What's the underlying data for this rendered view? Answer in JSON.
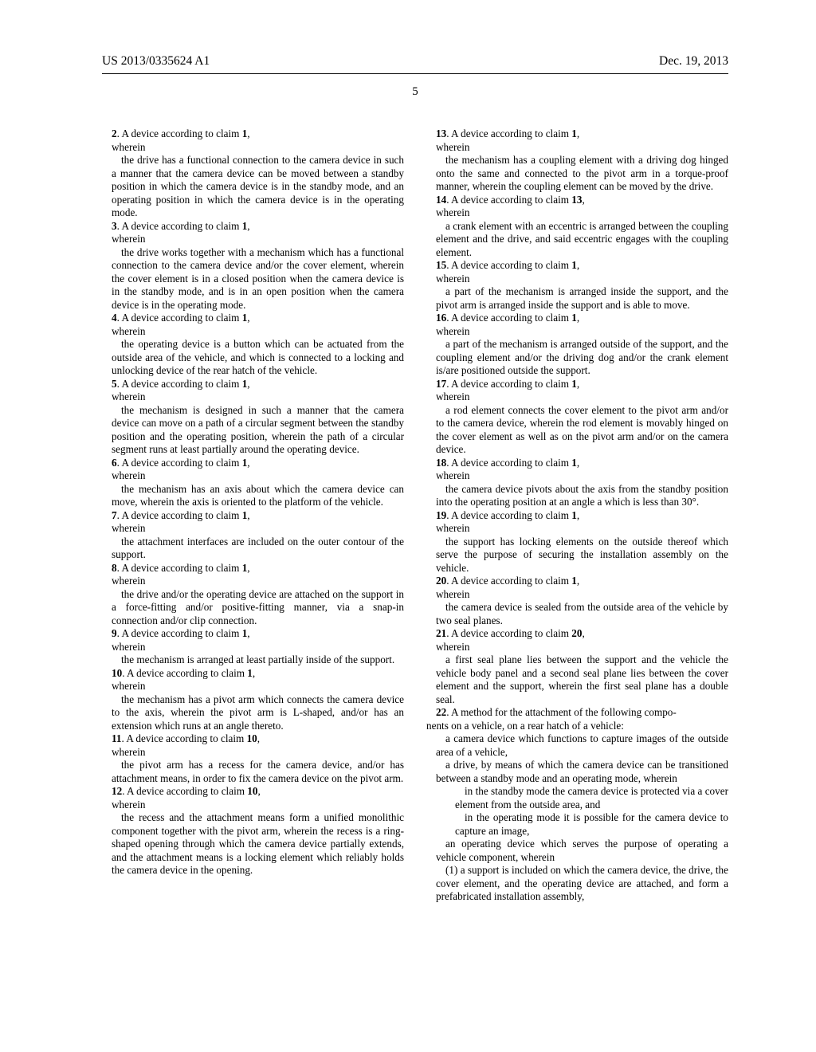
{
  "header": {
    "left": "US 2013/0335624 A1",
    "right": "Dec. 19, 2013",
    "pageNumber": "5"
  },
  "leftColumn": {
    "c2_lead": "2. A device according to claim 1,",
    "c2_wherein": "wherein",
    "c2_body": "the drive has a functional connection to the camera device in such a manner that the camera device can be moved between a standby position in which the camera device is in the standby mode, and an operating position in which the camera device is in the operating mode.",
    "c3_lead": "3. A device according to claim 1,",
    "c3_wherein": "wherein",
    "c3_body": "the drive works together with a mechanism which has a functional connection to the camera device and/or the cover element, wherein the cover element is in a closed position when the camera device is in the standby mode, and is in an open position when the camera device is in the operating mode.",
    "c4_lead": "4. A device according to claim 1,",
    "c4_wherein": "wherein",
    "c4_body": "the operating device is a button which can be actuated from the outside area of the vehicle, and which is connected to a locking and unlocking device of the rear hatch of the vehicle.",
    "c5_lead": "5. A device according to claim 1,",
    "c5_wherein": "wherein",
    "c5_body": "the mechanism is designed in such a manner that the camera device can move on a path of a circular segment between the standby position and the operating position, wherein the path of a circular segment runs at least partially around the operating device.",
    "c6_lead": "6. A device according to claim 1,",
    "c6_wherein": "wherein",
    "c6_body": "the mechanism has an axis about which the camera device can move, wherein the axis is oriented to the platform of the vehicle.",
    "c7_lead": "7. A device according to claim 1,",
    "c7_wherein": "wherein",
    "c7_body": "the attachment interfaces are included on the outer contour of the support.",
    "c8_lead": "8. A device according to claim 1,",
    "c8_wherein": "wherein",
    "c8_body": "the drive and/or the operating device are attached on the support in a force-fitting and/or positive-fitting manner, via a snap-in connection and/or clip connection.",
    "c9_lead": "9. A device according to claim 1,",
    "c9_wherein": "wherein",
    "c9_body": "the mechanism is arranged at least partially inside of the support.",
    "c10_lead": "10. A device according to claim 1,",
    "c10_wherein": "wherein",
    "c10_body": "the mechanism has a pivot arm which connects the camera device to the axis, wherein the pivot arm is L-shaped, and/or has an extension which runs at an angle thereto.",
    "c11_lead": "11. A device according to claim 10,",
    "c11_wherein": "wherein",
    "c11_body": "the pivot arm has a recess for the camera device, and/or has attachment means, in order to fix the camera device on the pivot arm.",
    "c12_lead": "12. A device according to claim 10,",
    "c12_wherein": "wherein",
    "c12_body": "the recess and the attachment means form a unified monolithic component together with the pivot arm, wherein the recess is a ring-shaped opening through which the camera device partially extends, and the attachment means is a locking element which reliably holds the camera device in the opening."
  },
  "rightColumn": {
    "c13_lead": "13. A device according to claim 1,",
    "c13_wherein": "wherein",
    "c13_body": "the mechanism has a coupling element with a driving dog hinged onto the same and connected to the pivot arm in a torque-proof manner, wherein the coupling element can be moved by the drive.",
    "c14_lead": "14. A device according to claim 13,",
    "c14_wherein": "wherein",
    "c14_body": "a crank element with an eccentric is arranged between the coupling element and the drive, and said eccentric engages with the coupling element.",
    "c15_lead": "15. A device according to claim 1,",
    "c15_wherein": "wherein",
    "c15_body": "a part of the mechanism is arranged inside the support, and the pivot arm is arranged inside the support and is able to move.",
    "c16_lead": "16. A device according to claim 1,",
    "c16_wherein": "wherein",
    "c16_body": "a part of the mechanism is arranged outside of the support, and the coupling element and/or the driving dog and/or the crank element is/are positioned outside the support.",
    "c17_lead": "17. A device according to claim 1,",
    "c17_wherein": "wherein",
    "c17_body": "a rod element connects the cover element to the pivot arm and/or to the camera device, wherein the rod element is movably hinged on the cover element as well as on the pivot arm and/or on the camera device.",
    "c18_lead": "18. A device according to claim 1,",
    "c18_wherein": "wherein",
    "c18_body": "the camera device pivots about the axis from the standby position into the operating position at an angle a which is less than 30°.",
    "c19_lead": "19. A device according to claim 1,",
    "c19_wherein": "wherein",
    "c19_body": "the support has locking elements on the outside thereof which serve the purpose of securing the installation assembly on the vehicle.",
    "c20_lead": "20. A device according to claim 1,",
    "c20_wherein": "wherein",
    "c20_body": "the camera device is sealed from the outside area of the vehicle by two seal planes.",
    "c21_lead": "21. A device according to claim 20,",
    "c21_wherein": "wherein",
    "c21_body": "a first seal plane lies between the support and the vehicle the vehicle body panel and a second seal plane lies between the cover element and the support, wherein the first seal plane has a double seal.",
    "c22_intro1": "22. A method for the attachment of the following compo",
    "c22_intro2": "nents on a vehicle, on a rear hatch of a vehicle:",
    "c22_b1": "a camera device which functions to capture images of the outside area of a vehicle,",
    "c22_b2": "a drive, by means of which the camera device can be transitioned between a standby mode and an operating mode, wherein",
    "c22_b2a": "in the standby mode the camera device is protected via a cover element from the outside area, and",
    "c22_b2b": "in the operating mode it is possible for the camera device to capture an image,",
    "c22_b3": "an operating device which serves the purpose of operating a vehicle component, wherein",
    "c22_b4": "(1) a support is included on which the camera device, the drive, the cover element, and the operating device are attached, and form a prefabricated installation assembly,"
  }
}
